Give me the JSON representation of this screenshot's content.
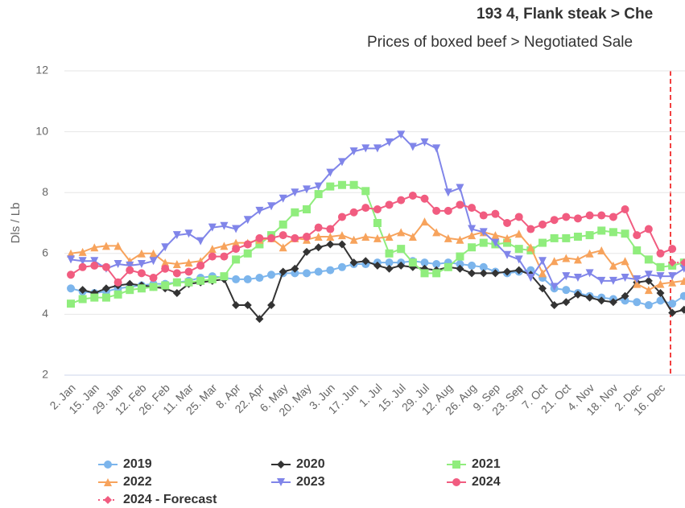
{
  "chart_data": {
    "type": "line",
    "title": "193 4, Flank steak > Che",
    "subtitle": "Prices of boxed beef > Negotiated Sale",
    "y_label": "Dls / Lb",
    "categories": [
      "2. Jan",
      null,
      "15. Jan",
      null,
      "29. Jan",
      null,
      "12. Feb",
      null,
      "26. Feb",
      null,
      "11. Mar",
      null,
      "25. Mar",
      null,
      "8. Apr",
      null,
      "22. Apr",
      null,
      "6. May",
      null,
      "20. May",
      null,
      "3. Jun",
      null,
      "17. Jun",
      null,
      "1. Jul",
      null,
      "15. Jul",
      null,
      "29. Jul",
      null,
      "12. Aug",
      null,
      "26. Aug",
      null,
      "9. Sep",
      null,
      "23. Sep",
      null,
      "7. Oct",
      null,
      "21. Oct",
      null,
      "4. Nov",
      null,
      "18. Nov",
      null,
      "2. Dec",
      null,
      "16. Dec",
      null,
      null
    ],
    "ylim": [
      2,
      12
    ],
    "yticks": [
      2,
      4,
      6,
      8,
      10,
      12
    ],
    "grid": true,
    "series": [
      {
        "name": "2019",
        "color": "#7cb5ec",
        "marker": "circle",
        "values": [
          4.85,
          4.75,
          4.7,
          4.75,
          4.85,
          4.9,
          4.95,
          5.0,
          5.0,
          5.05,
          5.1,
          5.2,
          5.25,
          5.2,
          5.15,
          5.15,
          5.2,
          5.3,
          5.35,
          5.35,
          5.35,
          5.4,
          5.45,
          5.55,
          5.65,
          5.65,
          5.7,
          5.7,
          5.7,
          5.75,
          5.7,
          5.65,
          5.7,
          5.65,
          5.6,
          5.55,
          5.4,
          5.35,
          5.4,
          5.45,
          5.2,
          4.85,
          4.8,
          4.7,
          4.6,
          4.55,
          4.5,
          4.45,
          4.4,
          4.3,
          4.45,
          4.35,
          4.6
        ]
      },
      {
        "name": "2020",
        "color": "#333333",
        "marker": "diamond",
        "values": [
          null,
          4.8,
          4.7,
          4.85,
          4.95,
          5.0,
          4.95,
          4.9,
          4.85,
          4.7,
          5.0,
          5.05,
          5.1,
          5.15,
          4.3,
          4.3,
          3.85,
          4.3,
          5.4,
          5.5,
          6.05,
          6.2,
          6.3,
          6.3,
          5.7,
          5.75,
          5.6,
          5.5,
          5.6,
          5.55,
          5.5,
          5.45,
          5.55,
          5.5,
          5.35,
          5.35,
          5.35,
          5.4,
          5.45,
          5.3,
          4.85,
          4.3,
          4.4,
          4.65,
          4.55,
          4.45,
          4.4,
          4.6,
          5.05,
          5.1,
          4.7,
          4.05,
          4.15
        ]
      },
      {
        "name": "2021",
        "color": "#90ed7d",
        "marker": "square",
        "values": [
          4.35,
          4.5,
          4.55,
          4.55,
          4.65,
          4.8,
          4.85,
          4.9,
          4.95,
          5.05,
          5.05,
          5.1,
          5.15,
          5.25,
          5.8,
          6.0,
          6.3,
          6.6,
          6.95,
          7.35,
          7.45,
          7.95,
          8.2,
          8.25,
          8.25,
          8.05,
          7.0,
          6.0,
          6.15,
          5.7,
          5.35,
          5.35,
          5.55,
          5.9,
          6.2,
          6.35,
          6.3,
          6.35,
          6.15,
          6.1,
          6.35,
          6.5,
          6.5,
          6.55,
          6.6,
          6.75,
          6.7,
          6.65,
          6.1,
          5.8,
          5.55,
          5.6,
          5.7
        ]
      },
      {
        "name": "2022",
        "color": "#f7a35c",
        "marker": "triangle",
        "values": [
          6.0,
          6.05,
          6.2,
          6.25,
          6.25,
          5.75,
          6.0,
          6.0,
          5.7,
          5.65,
          5.7,
          5.75,
          6.15,
          6.25,
          6.35,
          6.35,
          6.45,
          6.5,
          6.2,
          6.5,
          6.45,
          6.55,
          6.55,
          6.6,
          6.45,
          6.55,
          6.5,
          6.55,
          6.7,
          6.55,
          7.05,
          6.7,
          6.5,
          6.45,
          6.6,
          6.7,
          6.6,
          6.5,
          6.65,
          6.2,
          5.35,
          5.75,
          5.85,
          5.8,
          6.0,
          6.1,
          5.6,
          5.75,
          5.0,
          4.8,
          5.0,
          5.05,
          5.1
        ]
      },
      {
        "name": "2023",
        "color": "#8085e9",
        "marker": "triangle-down",
        "values": [
          5.8,
          5.75,
          5.75,
          5.5,
          5.65,
          5.6,
          5.65,
          5.75,
          6.2,
          6.6,
          6.65,
          6.4,
          6.85,
          6.9,
          6.8,
          7.1,
          7.4,
          7.55,
          7.8,
          8.0,
          8.1,
          8.2,
          8.65,
          9.0,
          9.35,
          9.45,
          9.45,
          9.65,
          9.9,
          9.5,
          9.65,
          9.45,
          8.0,
          8.15,
          6.8,
          6.7,
          6.35,
          5.95,
          5.8,
          5.2,
          5.75,
          4.9,
          5.25,
          5.2,
          5.35,
          5.1,
          5.1,
          5.2,
          5.15,
          5.3,
          5.25,
          5.25,
          5.5
        ]
      },
      {
        "name": "2024",
        "color": "#f15c80",
        "marker": "circle",
        "values": [
          5.3,
          5.55,
          5.6,
          5.55,
          5.05,
          5.45,
          5.35,
          5.2,
          5.5,
          5.35,
          5.4,
          5.6,
          5.9,
          5.9,
          6.15,
          6.3,
          6.5,
          6.5,
          6.6,
          6.5,
          6.55,
          6.85,
          6.8,
          7.2,
          7.35,
          7.5,
          7.45,
          7.6,
          7.75,
          7.9,
          7.8,
          7.4,
          7.4,
          7.6,
          7.5,
          7.25,
          7.3,
          7.0,
          7.2,
          6.8,
          6.95,
          7.1,
          7.2,
          7.15,
          7.25,
          7.25,
          7.2,
          7.45,
          6.6,
          6.8,
          6.0,
          6.15,
          null
        ]
      },
      {
        "name": "2024 - Forecast",
        "color": "#f15c80",
        "marker": "diamond",
        "dashed": true,
        "values": [
          null,
          null,
          null,
          null,
          null,
          null,
          null,
          null,
          null,
          null,
          null,
          null,
          null,
          null,
          null,
          null,
          null,
          null,
          null,
          null,
          null,
          null,
          null,
          null,
          null,
          null,
          null,
          null,
          null,
          null,
          null,
          null,
          null,
          null,
          null,
          null,
          null,
          null,
          null,
          null,
          null,
          null,
          null,
          null,
          null,
          null,
          null,
          null,
          null,
          null,
          null,
          5.7,
          5.7
        ]
      }
    ]
  }
}
